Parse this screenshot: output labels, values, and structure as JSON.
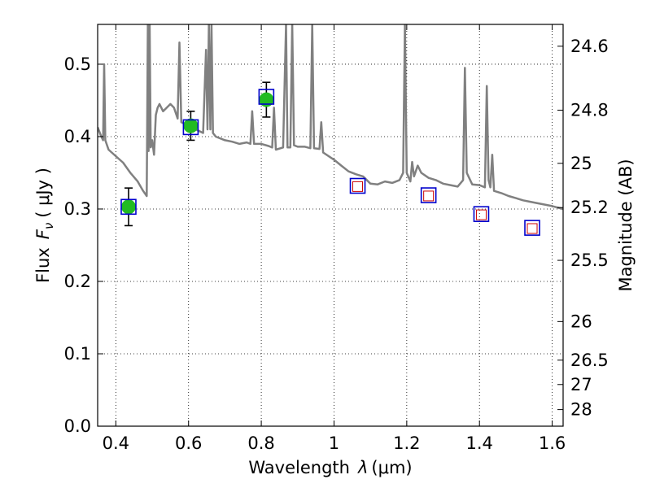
{
  "chart_data": {
    "type": "scatter",
    "xlabel_text": "Wavelength",
    "xlabel_sym": "λ",
    "xlabel_unit": "(μm)",
    "ylabel_text": "Flux",
    "ylabel_sym": "F",
    "ylabel_sub": "ν",
    "ylabel_unit": "( μJy )",
    "y2label": "Magnitude (AB)",
    "xlim": [
      0.35,
      1.63
    ],
    "ylim": [
      0.0,
      0.555
    ],
    "grid": true,
    "x_ticks": [
      {
        "v": 0.4,
        "label": "0.4"
      },
      {
        "v": 0.6,
        "label": "0.6"
      },
      {
        "v": 0.8,
        "label": "0.8"
      },
      {
        "v": 1.0,
        "label": "1"
      },
      {
        "v": 1.2,
        "label": "1.2"
      },
      {
        "v": 1.4,
        "label": "1.4"
      },
      {
        "v": 1.6,
        "label": "1.6"
      }
    ],
    "y_ticks": [
      {
        "v": 0.0,
        "label": "0.0"
      },
      {
        "v": 0.1,
        "label": "0.1"
      },
      {
        "v": 0.2,
        "label": "0.2"
      },
      {
        "v": 0.3,
        "label": "0.3"
      },
      {
        "v": 0.4,
        "label": "0.4"
      },
      {
        "v": 0.5,
        "label": "0.5"
      }
    ],
    "y2_ticks": [
      {
        "v": 24.6,
        "label": "24.6"
      },
      {
        "v": 24.8,
        "label": "24.8"
      },
      {
        "v": 25.0,
        "label": "25"
      },
      {
        "v": 25.2,
        "label": "25.2"
      },
      {
        "v": 25.5,
        "label": "25.5"
      },
      {
        "v": 26.0,
        "label": "26"
      },
      {
        "v": 26.5,
        "label": "26.5"
      },
      {
        "v": 27.0,
        "label": "27"
      },
      {
        "v": 28.0,
        "label": "28"
      }
    ],
    "observed": [
      {
        "x": 0.435,
        "y": 0.303,
        "err": 0.026
      },
      {
        "x": 0.606,
        "y": 0.415,
        "err": 0.02
      },
      {
        "x": 0.814,
        "y": 0.451,
        "err": 0.024
      }
    ],
    "model_photometry": [
      {
        "x": 0.435,
        "y": 0.303
      },
      {
        "x": 0.606,
        "y": 0.413
      },
      {
        "x": 0.814,
        "y": 0.455
      },
      {
        "x": 1.065,
        "y": 0.332
      },
      {
        "x": 1.26,
        "y": 0.319
      },
      {
        "x": 1.405,
        "y": 0.293
      },
      {
        "x": 1.545,
        "y": 0.274
      }
    ],
    "predicted": [
      {
        "x": 1.065,
        "y": 0.331
      },
      {
        "x": 1.26,
        "y": 0.318
      },
      {
        "x": 1.405,
        "y": 0.292
      },
      {
        "x": 1.545,
        "y": 0.273
      }
    ],
    "sed_curve": [
      [
        0.35,
        0.413
      ],
      [
        0.36,
        0.4
      ],
      [
        0.365,
        0.395
      ],
      [
        0.368,
        0.5
      ],
      [
        0.371,
        0.395
      ],
      [
        0.38,
        0.382
      ],
      [
        0.4,
        0.373
      ],
      [
        0.42,
        0.364
      ],
      [
        0.44,
        0.35
      ],
      [
        0.46,
        0.338
      ],
      [
        0.475,
        0.325
      ],
      [
        0.485,
        0.318
      ],
      [
        0.488,
        0.555
      ],
      [
        0.49,
        0.38
      ],
      [
        0.493,
        0.555
      ],
      [
        0.496,
        0.385
      ],
      [
        0.5,
        0.395
      ],
      [
        0.505,
        0.375
      ],
      [
        0.51,
        0.43
      ],
      [
        0.515,
        0.44
      ],
      [
        0.52,
        0.445
      ],
      [
        0.53,
        0.435
      ],
      [
        0.54,
        0.44
      ],
      [
        0.55,
        0.445
      ],
      [
        0.56,
        0.44
      ],
      [
        0.57,
        0.425
      ],
      [
        0.575,
        0.53
      ],
      [
        0.58,
        0.42
      ],
      [
        0.6,
        0.415
      ],
      [
        0.62,
        0.41
      ],
      [
        0.64,
        0.405
      ],
      [
        0.648,
        0.52
      ],
      [
        0.652,
        0.41
      ],
      [
        0.656,
        0.555
      ],
      [
        0.66,
        0.41
      ],
      [
        0.663,
        0.555
      ],
      [
        0.667,
        0.405
      ],
      [
        0.675,
        0.4
      ],
      [
        0.7,
        0.395
      ],
      [
        0.72,
        0.393
      ],
      [
        0.74,
        0.39
      ],
      [
        0.76,
        0.392
      ],
      [
        0.77,
        0.39
      ],
      [
        0.775,
        0.435
      ],
      [
        0.78,
        0.39
      ],
      [
        0.8,
        0.39
      ],
      [
        0.82,
        0.387
      ],
      [
        0.83,
        0.385
      ],
      [
        0.835,
        0.44
      ],
      [
        0.84,
        0.382
      ],
      [
        0.86,
        0.385
      ],
      [
        0.868,
        0.555
      ],
      [
        0.872,
        0.385
      ],
      [
        0.88,
        0.385
      ],
      [
        0.885,
        0.555
      ],
      [
        0.89,
        0.388
      ],
      [
        0.9,
        0.386
      ],
      [
        0.92,
        0.386
      ],
      [
        0.935,
        0.384
      ],
      [
        0.94,
        0.555
      ],
      [
        0.945,
        0.384
      ],
      [
        0.96,
        0.383
      ],
      [
        0.965,
        0.42
      ],
      [
        0.97,
        0.378
      ],
      [
        1.0,
        0.368
      ],
      [
        1.02,
        0.36
      ],
      [
        1.04,
        0.352
      ],
      [
        1.06,
        0.348
      ],
      [
        1.08,
        0.345
      ],
      [
        1.1,
        0.335
      ],
      [
        1.12,
        0.334
      ],
      [
        1.14,
        0.338
      ],
      [
        1.16,
        0.336
      ],
      [
        1.18,
        0.34
      ],
      [
        1.19,
        0.35
      ],
      [
        1.195,
        0.555
      ],
      [
        1.2,
        0.35
      ],
      [
        1.21,
        0.338
      ],
      [
        1.215,
        0.365
      ],
      [
        1.22,
        0.345
      ],
      [
        1.23,
        0.36
      ],
      [
        1.24,
        0.35
      ],
      [
        1.26,
        0.343
      ],
      [
        1.28,
        0.34
      ],
      [
        1.3,
        0.335
      ],
      [
        1.32,
        0.333
      ],
      [
        1.34,
        0.331
      ],
      [
        1.355,
        0.34
      ],
      [
        1.36,
        0.495
      ],
      [
        1.365,
        0.35
      ],
      [
        1.38,
        0.334
      ],
      [
        1.4,
        0.333
      ],
      [
        1.415,
        0.33
      ],
      [
        1.42,
        0.47
      ],
      [
        1.425,
        0.34
      ],
      [
        1.43,
        0.33
      ],
      [
        1.435,
        0.375
      ],
      [
        1.44,
        0.325
      ],
      [
        1.46,
        0.322
      ],
      [
        1.48,
        0.318
      ],
      [
        1.5,
        0.315
      ],
      [
        1.52,
        0.312
      ],
      [
        1.54,
        0.31
      ],
      [
        1.56,
        0.308
      ],
      [
        1.58,
        0.306
      ],
      [
        1.6,
        0.304
      ],
      [
        1.63,
        0.3
      ]
    ]
  }
}
